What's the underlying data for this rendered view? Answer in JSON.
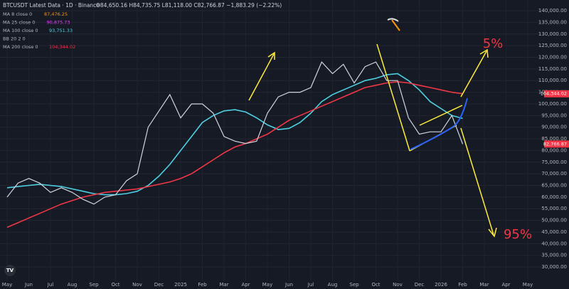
{
  "chart_data": {
    "type": "line",
    "title": "BTCUSDT Latest Data · 1D · Binance",
    "ohlc": "O84,650.16 H84,735.75 L81,118.00 C82,766.87 −1,883.29 (−2.22%)",
    "indicators": [
      {
        "name": "MA 8 close 0",
        "value": "87,476.25",
        "color": "#ff9800"
      },
      {
        "name": "MA 25 close 0",
        "value": "90,875.73",
        "color": "#e040fb"
      },
      {
        "name": "MA 100 close 0",
        "value": "93,751.33",
        "color": "#4dd0e1",
        "values": [
          64000,
          64500,
          65000,
          65500,
          65000,
          64500,
          63500,
          62500,
          61500,
          61000,
          61000,
          61500,
          62500,
          65000,
          69000,
          74000,
          80000,
          86000,
          92000,
          95000,
          97000,
          97500,
          96500,
          94000,
          91000,
          89000,
          89500,
          92000,
          96000,
          101000,
          104000,
          106000,
          108000,
          110000,
          111000,
          112500,
          113000,
          110000,
          106000,
          101000,
          98000,
          95000,
          93751,
          null,
          null,
          null,
          null,
          null,
          null
        ]
      },
      {
        "name": "BB 20 2 0",
        "color": "#b2b5be"
      },
      {
        "name": "MA 200 close 0",
        "value": "104,344.02",
        "color": "#f23645",
        "values": [
          47000,
          49000,
          51000,
          53000,
          55000,
          57000,
          58500,
          60000,
          61000,
          62000,
          62500,
          63000,
          63500,
          64500,
          65500,
          66500,
          68000,
          70000,
          73000,
          76000,
          79000,
          81500,
          83000,
          85000,
          87000,
          90000,
          93000,
          95000,
          97000,
          99000,
          101000,
          103000,
          105000,
          107000,
          108000,
          109000,
          109500,
          109000,
          108000,
          107000,
          106000,
          105000,
          104344,
          null,
          null,
          null,
          null,
          null,
          null
        ]
      }
    ],
    "categories": [
      "May",
      null,
      "Jun",
      null,
      "Jul",
      null,
      "Aug",
      null,
      "Sep",
      null,
      "Oct",
      null,
      "Nov",
      null,
      "Dec",
      null,
      "2025",
      null,
      "Feb",
      null,
      "Mar",
      null,
      "Apr",
      null,
      "May",
      null,
      "Jun",
      null,
      "Jul",
      null,
      "Aug",
      null,
      "Sep",
      null,
      "Oct",
      null,
      "Nov",
      null,
      "Dec",
      null,
      "2026",
      null,
      "Feb",
      null,
      "Mar",
      null,
      "Apr",
      null,
      "May"
    ],
    "close": {
      "color": "#d1d4dc",
      "values": [
        60000,
        66000,
        68000,
        66000,
        62000,
        64000,
        62000,
        59000,
        57000,
        60000,
        61000,
        67000,
        70000,
        90000,
        97000,
        104000,
        94000,
        100000,
        100000,
        96000,
        86000,
        84000,
        83000,
        84000,
        96000,
        103000,
        105000,
        105000,
        107000,
        118000,
        113000,
        117000,
        109000,
        116000,
        118000,
        110000,
        110000,
        94000,
        87000,
        88000,
        88000,
        95000,
        82767,
        null,
        null,
        null,
        null,
        null,
        null
      ]
    },
    "ylim": [
      23900,
      144600
    ],
    "yticks": [
      {
        "value": 140000,
        "label": "140,000.00"
      },
      {
        "value": 135000,
        "label": "135,000.00"
      },
      {
        "value": 130000,
        "label": "130,000.00"
      },
      {
        "value": 125000,
        "label": "125,000.00"
      },
      {
        "value": 120000,
        "label": "120,000.00"
      },
      {
        "value": 115000,
        "label": "115,000.00"
      },
      {
        "value": 110000,
        "label": "110,000.00"
      },
      {
        "value": 105000,
        "label": "105,000.00"
      },
      {
        "value": 100000,
        "label": "100,000.00"
      },
      {
        "value": 95000,
        "label": "95,000.00"
      },
      {
        "value": 90000,
        "label": "90,000.00"
      },
      {
        "value": 85000,
        "label": "85,000.00"
      },
      {
        "value": 80000,
        "label": "80,000.00"
      },
      {
        "value": 75000,
        "label": "75,000.00"
      },
      {
        "value": 70000,
        "label": "70,000.00"
      },
      {
        "value": 65000,
        "label": "65,000.00"
      },
      {
        "value": 60000,
        "label": "60,000.00"
      },
      {
        "value": 55000,
        "label": "55,000.00"
      },
      {
        "value": 50000,
        "label": "50,000.00"
      },
      {
        "value": 45000,
        "label": "45,000.00"
      },
      {
        "value": 40000,
        "label": "40,000.00"
      },
      {
        "value": 35000,
        "label": "35,000.00"
      },
      {
        "value": 30000,
        "label": "30,000.00"
      }
    ],
    "price_labels": [
      {
        "value": 104344.02,
        "label": "104,344.02",
        "color": "#f23645"
      },
      {
        "value": 82766.87,
        "label": "82,766.87",
        "color": "#f23645"
      }
    ],
    "annotations": [
      "5%",
      "95%"
    ],
    "grid": true
  }
}
